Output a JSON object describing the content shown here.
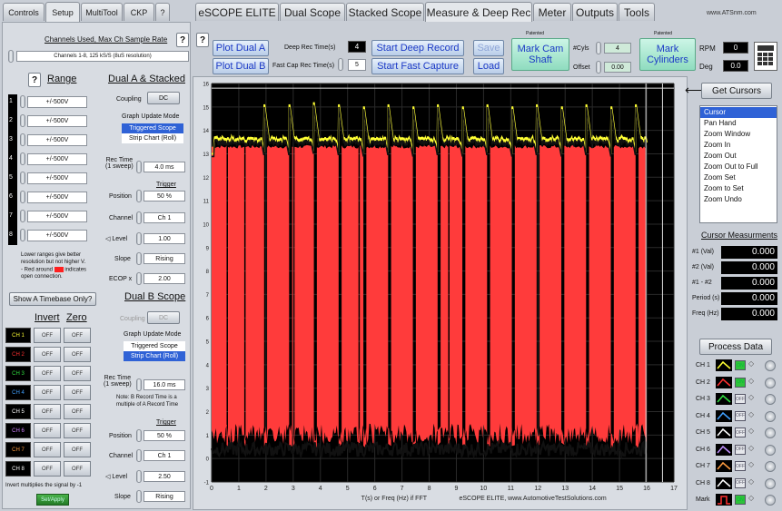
{
  "left_tabs": [
    "Controls",
    "Setup",
    "MultiTool",
    "CKP",
    "?"
  ],
  "main_tabs": [
    "eSCOPE ELITE",
    "Dual Scope",
    "Stacked Scope",
    "Measure & Deep Rec",
    "Meter",
    "Outputs",
    "Tools"
  ],
  "website": "www.ATSnm.com",
  "channels": {
    "title": "Channels Used, Max Ch Sample Rate",
    "help": "?",
    "dropdown": "Channels 1-8, 125 kS/S (8uS resolution)"
  },
  "range": {
    "title": "Range",
    "help": "?",
    "values": [
      "+/-500V",
      "+/-500V",
      "+/-500V",
      "+/-500V",
      "+/-500V",
      "+/-500V",
      "+/-500V",
      "+/-500V"
    ],
    "channel_numbers": [
      "1",
      "2",
      "3",
      "4",
      "5",
      "6",
      "7",
      "8"
    ],
    "note_1": "Lower ranges give better",
    "note_2": "resolution but not higher V.",
    "note_3a": "- Red around",
    "note_3b": "indicates",
    "note_4": "open connection.",
    "timebase_button": "Show A Timebase Only?"
  },
  "invert_zero": {
    "invert_label": "Invert",
    "zero_label": "Zero",
    "channels": [
      "CH 1",
      "CH 2",
      "CH 3",
      "CH 4",
      "CH 5",
      "CH 6",
      "CH 7",
      "CH 8"
    ],
    "channel_colors": [
      "#ffff33",
      "#ff3030",
      "#30e040",
      "#40a0ff",
      "#ffffff",
      "#d080ff",
      "#ff9c40",
      "#ffffff"
    ],
    "off_label": "OFF",
    "note": "Invert multiplies the signal by -1",
    "ok_button": "Set/Apply"
  },
  "dual_a": {
    "title": "Dual A & Stacked",
    "coupling_label": "Coupling",
    "coupling_value": "DC",
    "graph_mode_label": "Graph Update Mode",
    "mode_options": [
      "Triggered Scope",
      "Strip Chart (Roll)"
    ],
    "selected_mode": 0,
    "rec_time_label_1": "Rec Time",
    "rec_time_label_2": "(1 sweep)",
    "rec_time_value": "4.0 ms",
    "trigger_label": "Trigger",
    "position_label": "Position",
    "position_value": "50 %",
    "channel_label": "Channel",
    "channel_value": "Ch 1",
    "level_label": "Level",
    "level_value": "1.00",
    "slope_label": "Slope",
    "slope_value": "Rising",
    "ecop_label": "ECOP x",
    "ecop_value": "2.00"
  },
  "dual_b": {
    "title": "Dual B Scope",
    "coupling_label": "Coupling",
    "coupling_value": "DC",
    "graph_mode_label": "Graph Update Mode",
    "mode_options": [
      "Triggered Scope",
      "Strip Chart (Roll)"
    ],
    "selected_mode": 1,
    "rec_time_label_1": "Rec Time",
    "rec_time_label_2": "(1 sweep)",
    "rec_time_value": "16.0 ms",
    "note_1": "Note: B Record Time is a",
    "note_2": "multiple of A Record Time",
    "trigger_label": "Trigger",
    "position_label": "Position",
    "position_value": "50 %",
    "channel_label": "Channel",
    "channel_value": "Ch 1",
    "level_label": "Level",
    "level_value": "2.50",
    "slope_label": "Slope",
    "slope_value": "Rising"
  },
  "toolbar": {
    "help": "?",
    "plot_a": "Plot Dual A",
    "plot_b": "Plot Dual B",
    "deep_rec_label": "Deep Rec Time(s)",
    "deep_rec_value": "4",
    "fast_cap_label": "Fast Cap Rec Time(s)",
    "fast_cap_value": "5",
    "start_deep": "Start Deep Record",
    "start_fast": "Start Fast Capture",
    "save": "Save",
    "load": "Load",
    "patented_1": "Patented",
    "mark_cam": "Mark Cam Shaft",
    "cyls_label": "#Cyls",
    "cyls_value": "4",
    "offset_label": "Offset",
    "offset_value": "0.00",
    "patented_2": "Patented",
    "mark_cyl": "Mark Cylinders",
    "rpm_label": "RPM",
    "rpm_value": "0",
    "deg_label": "Deg",
    "deg_value": "0.0",
    "calculator": "calculator-icon"
  },
  "cursors": {
    "get_button": "Get Cursors",
    "arrow": "⟵",
    "items": [
      "Cursor",
      "Pan Hand",
      "Zoom Window",
      "Zoom In",
      "Zoom Out",
      "Zoom Out to Full",
      "Zoom Set",
      "Zoom to Set",
      "Zoom Undo"
    ],
    "selected": 0,
    "measurements_title": "Cursor Measurments",
    "measurements": [
      {
        "label": "#1 (Val)",
        "value": "0.000"
      },
      {
        "label": "#2 (Val)",
        "value": "0.000"
      },
      {
        "label": "#1 - #2",
        "value": "0.000"
      },
      {
        "label": "Period (s)",
        "value": "0.000"
      },
      {
        "label": "Freq (Hz)",
        "value": "0.000"
      }
    ]
  },
  "process": {
    "button": "Process Data",
    "rows": [
      {
        "label": "CH 1",
        "color": "#ffff33",
        "state": "ON"
      },
      {
        "label": "CH 2",
        "color": "#ff3030",
        "state": "ON"
      },
      {
        "label": "CH 3",
        "color": "#30e040",
        "state": "OFF"
      },
      {
        "label": "CH 4",
        "color": "#40a0ff",
        "state": "OFF"
      },
      {
        "label": "CH 5",
        "color": "#ffffff",
        "state": "OFF"
      },
      {
        "label": "CH 6",
        "color": "#c090ff",
        "state": "OFF"
      },
      {
        "label": "CH 7",
        "color": "#ff9c40",
        "state": "OFF"
      },
      {
        "label": "CH 8",
        "color": "#ffffff",
        "state": "OFF"
      },
      {
        "label": "Mark",
        "color": "#ff3030",
        "state": "ON"
      }
    ],
    "arrow": "◇"
  },
  "chart_data": {
    "type": "line",
    "x_range": [
      0,
      17
    ],
    "y_range": [
      -1,
      16
    ],
    "x_ticks": [
      "0",
      "1",
      "2",
      "3",
      "4",
      "5",
      "6",
      "7",
      "8",
      "9",
      "10",
      "11",
      "12",
      "13",
      "14",
      "15",
      "16",
      "17"
    ],
    "y_ticks": [
      "-1",
      "0",
      "1",
      "2",
      "3",
      "4",
      "5",
      "6",
      "7",
      "8",
      "9",
      "10",
      "11",
      "12",
      "13",
      "14",
      "15",
      "16"
    ],
    "xlabel": "T(s) or Freq (Hz) if FFT",
    "footer": "eSCOPE ELITE, www.AutomotiveTestSolutions.com",
    "series": [
      {
        "color": "#ffff33",
        "baseline": 13.6,
        "spike_peak": 15.2,
        "dip": 13.0
      },
      {
        "color": "#ff3b3b",
        "baseline": 13.3,
        "low": 0.4,
        "dips_at": [
          1.93,
          2.85,
          3.76,
          4.67,
          5.58,
          6.49,
          7.4,
          8.31,
          9.22,
          10.13,
          11.04,
          11.95,
          12.86,
          13.77,
          14.68,
          15.59
        ],
        "extra_dips_at": [
          0.55,
          1.2,
          3.0,
          5.4,
          8.7
        ]
      }
    ],
    "cursor_lines_x": [
      15.97,
      16.58
    ],
    "grid": true
  }
}
